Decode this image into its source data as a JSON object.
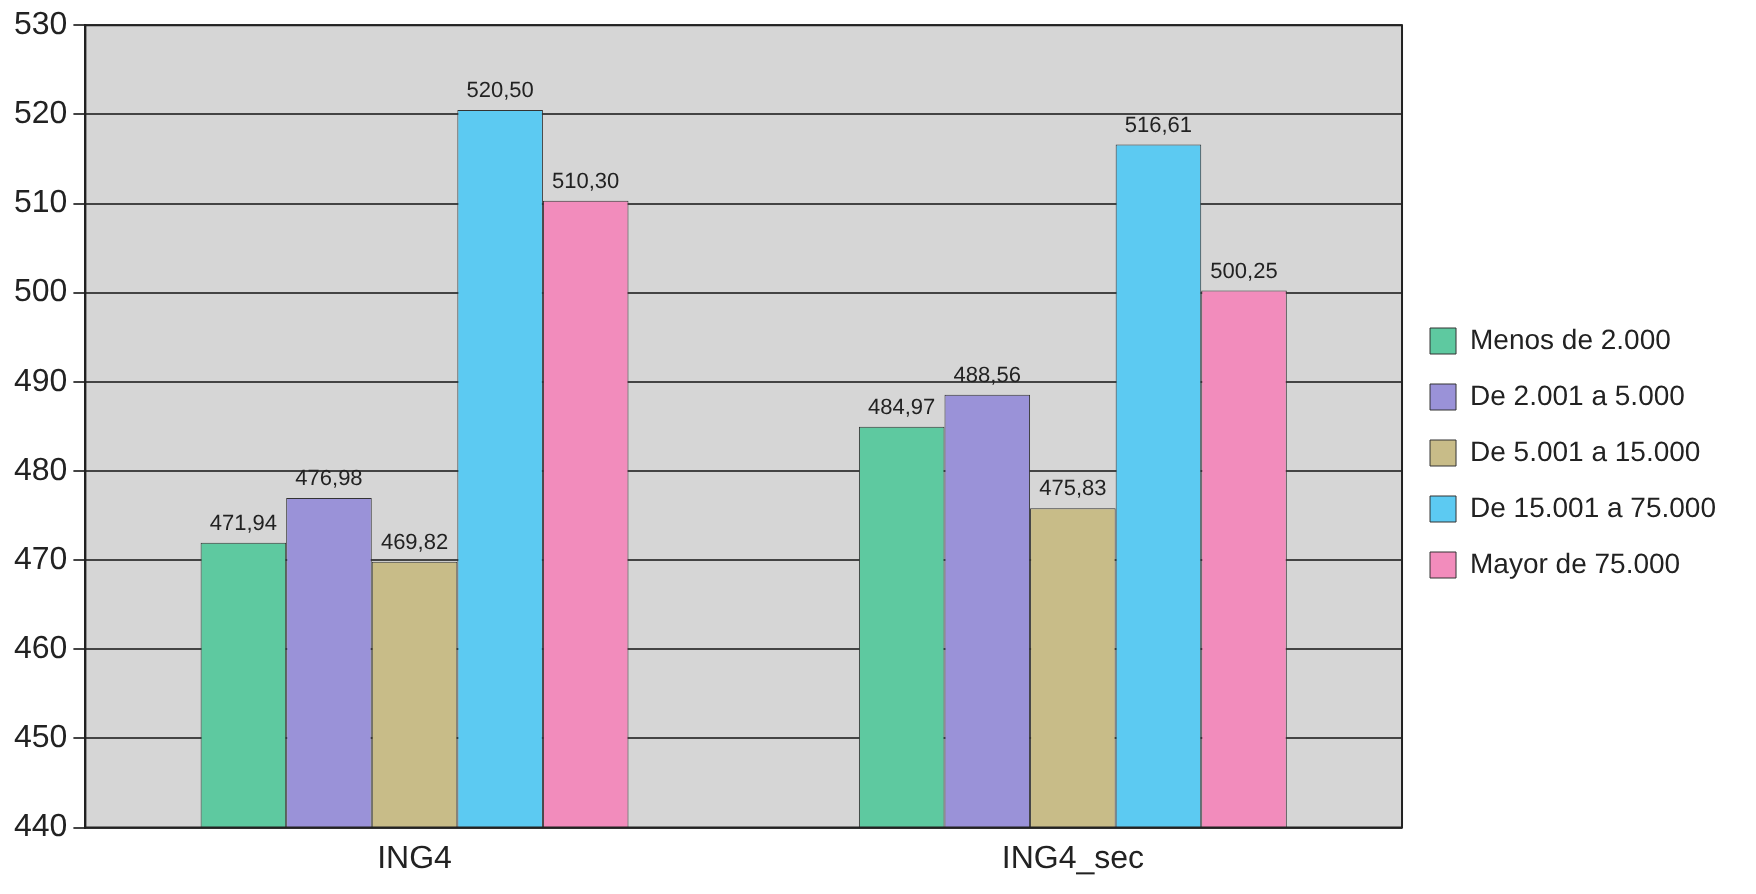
{
  "chart_data": {
    "type": "bar",
    "categories": [
      "ING4",
      "ING4_sec"
    ],
    "series": [
      {
        "name": "Menos de 2.000",
        "color": "#5ec9a0",
        "values": [
          471.94,
          484.97
        ],
        "value_labels": [
          "471,94",
          "484,97"
        ]
      },
      {
        "name": "De 2.001 a 5.000",
        "color": "#9a92d8",
        "values": [
          476.98,
          488.56
        ],
        "value_labels": [
          "476,98",
          "488,56"
        ]
      },
      {
        "name": "De 5.001 a 15.000",
        "color": "#c8bc88",
        "values": [
          469.82,
          475.83
        ],
        "value_labels": [
          "469,82",
          "475,83"
        ]
      },
      {
        "name": "De 15.001 a 75.000",
        "color": "#5ccaf2",
        "values": [
          520.5,
          516.61
        ],
        "value_labels": [
          "520,50",
          "516,61"
        ]
      },
      {
        "name": "Mayor de 75.000",
        "color": "#f28cbc",
        "values": [
          510.3,
          500.25
        ],
        "value_labels": [
          "510,30",
          "500,25"
        ]
      }
    ],
    "ylim": [
      440,
      530
    ],
    "yticks": [
      440,
      450,
      460,
      470,
      480,
      490,
      500,
      510,
      520,
      530
    ],
    "grid": "y",
    "legend": "right"
  }
}
